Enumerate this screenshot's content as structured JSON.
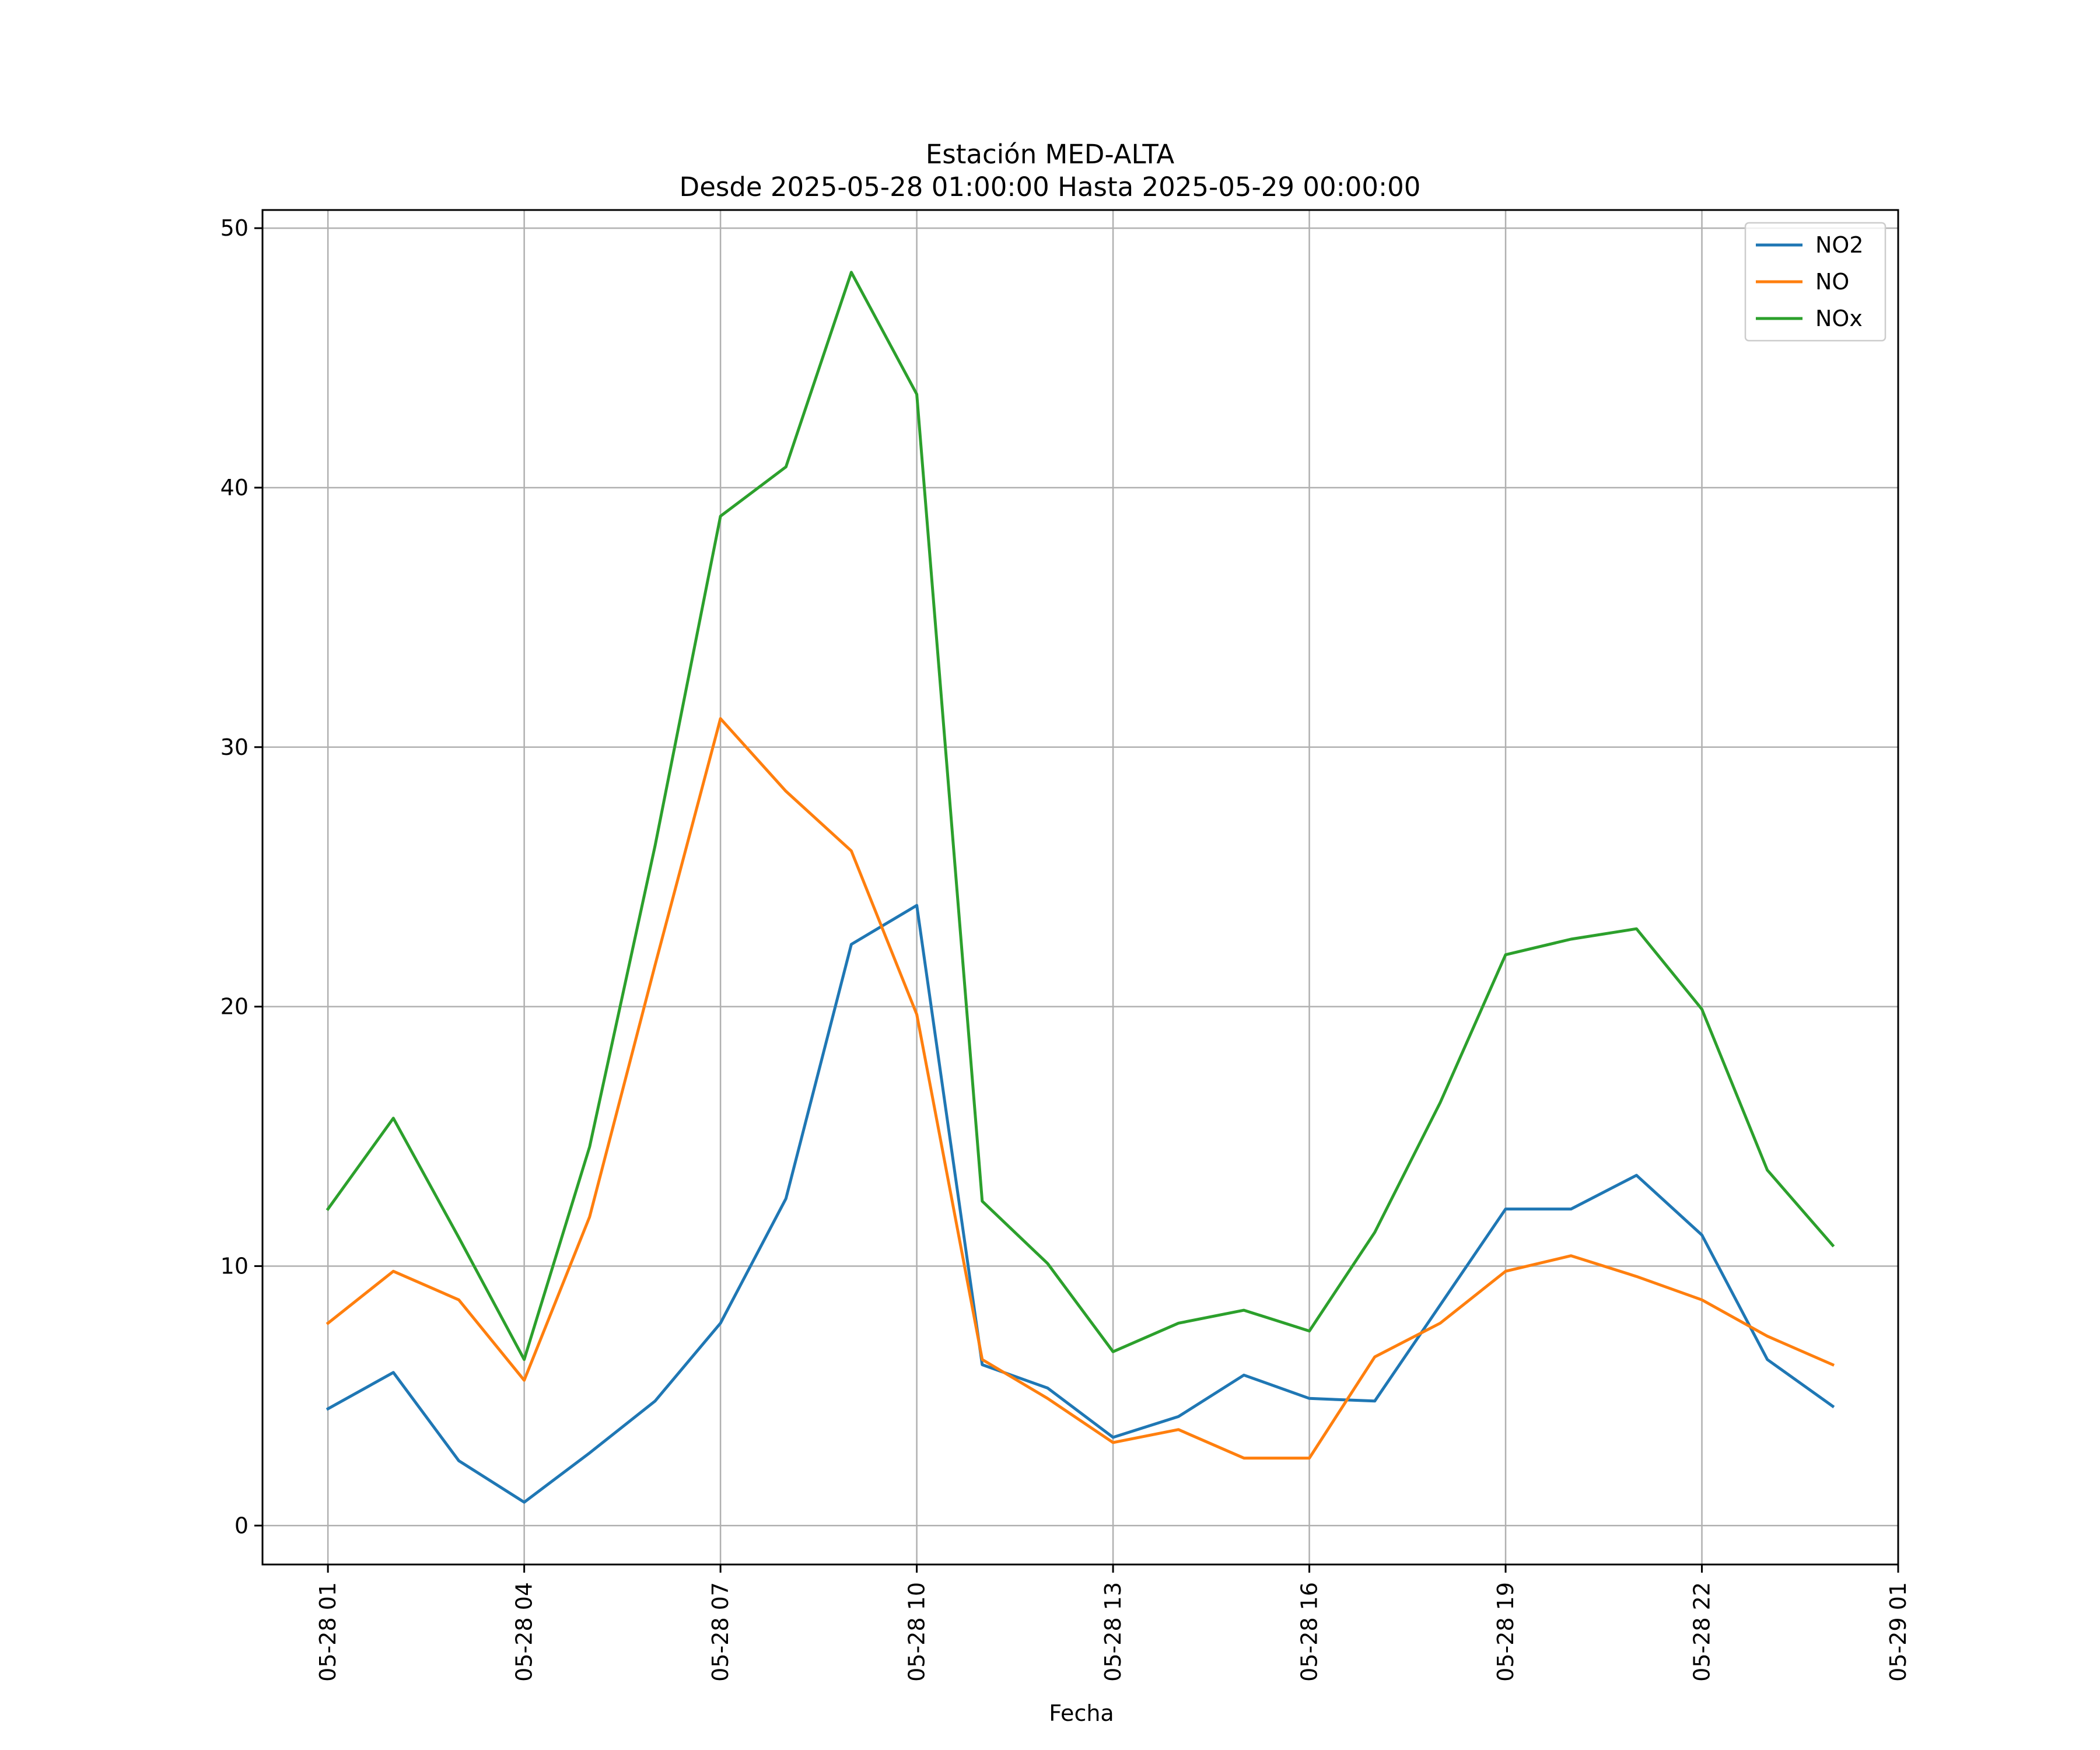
{
  "chart_data": {
    "type": "line",
    "title": "Estación MED-ALTA",
    "subtitle": "Desde 2025-05-28 01:00:00 Hasta 2025-05-29 00:00:00",
    "xlabel": "Fecha",
    "ylabel": "",
    "x": [
      "2025-05-28 01:00",
      "2025-05-28 02:00",
      "2025-05-28 03:00",
      "2025-05-28 04:00",
      "2025-05-28 05:00",
      "2025-05-28 06:00",
      "2025-05-28 07:00",
      "2025-05-28 08:00",
      "2025-05-28 09:00",
      "2025-05-28 10:00",
      "2025-05-28 11:00",
      "2025-05-28 12:00",
      "2025-05-28 13:00",
      "2025-05-28 14:00",
      "2025-05-28 15:00",
      "2025-05-28 16:00",
      "2025-05-28 17:00",
      "2025-05-28 18:00",
      "2025-05-28 19:00",
      "2025-05-28 20:00",
      "2025-05-28 21:00",
      "2025-05-28 22:00",
      "2025-05-28 23:00",
      "2025-05-29 00:00"
    ],
    "xlim": [
      "2025-05-28 00:00",
      "2025-05-29 01:00"
    ],
    "x_ticks": [
      {
        "value": "2025-05-28 01:00",
        "label": "05-28 01"
      },
      {
        "value": "2025-05-28 04:00",
        "label": "05-28 04"
      },
      {
        "value": "2025-05-28 07:00",
        "label": "05-28 07"
      },
      {
        "value": "2025-05-28 10:00",
        "label": "05-28 10"
      },
      {
        "value": "2025-05-28 13:00",
        "label": "05-28 13"
      },
      {
        "value": "2025-05-28 16:00",
        "label": "05-28 16"
      },
      {
        "value": "2025-05-28 19:00",
        "label": "05-28 19"
      },
      {
        "value": "2025-05-28 22:00",
        "label": "05-28 22"
      },
      {
        "value": "2025-05-29 01:00",
        "label": "05-29 01"
      }
    ],
    "ylim": [
      -1.5,
      50.7
    ],
    "y_ticks": [
      0,
      10,
      20,
      30,
      40,
      50
    ],
    "grid": true,
    "legend_position": "top-right",
    "series": [
      {
        "name": "NO2",
        "color": "#1f77b4",
        "values": [
          4.5,
          5.9,
          2.5,
          0.9,
          2.8,
          4.8,
          7.8,
          12.6,
          22.4,
          23.9,
          6.2,
          5.3,
          3.4,
          4.2,
          5.8,
          4.9,
          4.8,
          8.5,
          12.2,
          12.2,
          13.5,
          11.2,
          6.4,
          4.6
        ]
      },
      {
        "name": "NO",
        "color": "#ff7f0e",
        "values": [
          7.8,
          9.8,
          8.7,
          5.6,
          11.9,
          21.6,
          31.1,
          28.3,
          26.0,
          19.7,
          6.4,
          4.9,
          3.2,
          3.7,
          2.6,
          2.6,
          6.5,
          7.8,
          9.8,
          10.4,
          9.6,
          8.7,
          7.3,
          6.2
        ]
      },
      {
        "name": "NOx",
        "color": "#2ca02c",
        "values": [
          12.2,
          15.7,
          11.1,
          6.4,
          14.6,
          26.2,
          38.9,
          40.8,
          48.3,
          43.6,
          12.5,
          10.1,
          6.7,
          7.8,
          8.3,
          7.5,
          11.3,
          16.3,
          22.0,
          22.6,
          23.0,
          19.9,
          13.7,
          10.8
        ]
      }
    ]
  }
}
